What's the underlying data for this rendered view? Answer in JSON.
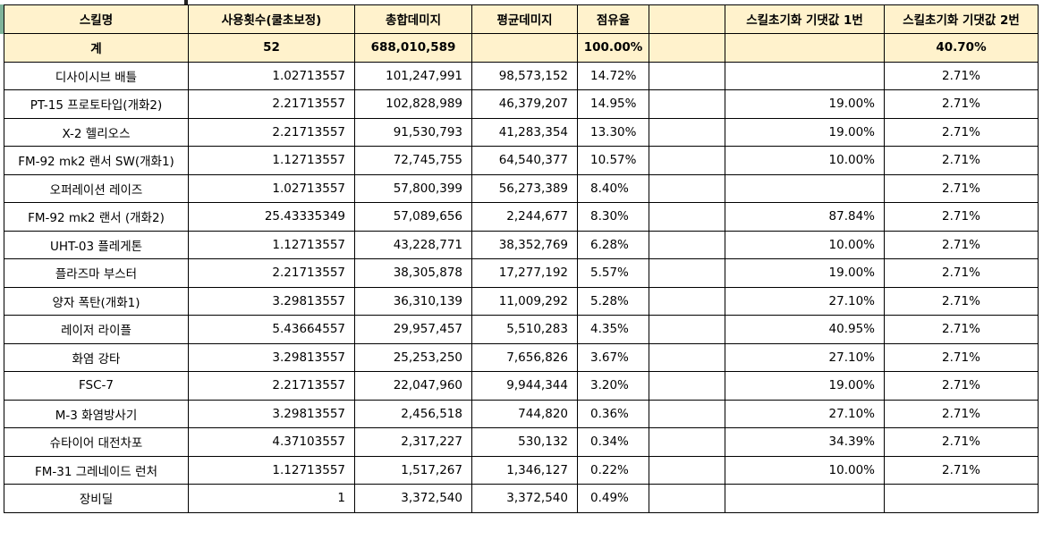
{
  "headers": {
    "skill_name": "스킬명",
    "usage": "사용횟수(쿨초보정)",
    "total_damage": "총합데미지",
    "avg_damage": "평균데미지",
    "share": "점유율",
    "blank": "",
    "reset1": "스킬초기화 기댓값 1번",
    "reset2": "스킬초기화 기댓값 2번"
  },
  "total": {
    "label": "계",
    "usage": "52",
    "total_damage": "688,010,589",
    "avg_damage": "",
    "share": "100.00%",
    "blank": "",
    "reset1": "",
    "reset2": "40.70%"
  },
  "rows": [
    {
      "name": "디사이시브 배틀",
      "usage": "1.02713557",
      "total": "101,247,991",
      "avg": "98,573,152",
      "share": "14.72%",
      "reset1": "",
      "reset2": "2.71%"
    },
    {
      "name": "PT-15 프로토타입(개화2)",
      "usage": "2.21713557",
      "total": "102,828,989",
      "avg": "46,379,207",
      "share": "14.95%",
      "reset1": "19.00%",
      "reset2": "2.71%"
    },
    {
      "name": "X-2 헬리오스",
      "usage": "2.21713557",
      "total": "91,530,793",
      "avg": "41,283,354",
      "share": "13.30%",
      "reset1": "19.00%",
      "reset2": "2.71%"
    },
    {
      "name": "FM-92 mk2 랜서 SW(개화1)",
      "usage": "1.12713557",
      "total": "72,745,755",
      "avg": "64,540,377",
      "share": "10.57%",
      "reset1": "10.00%",
      "reset2": "2.71%"
    },
    {
      "name": "오퍼레이션 레이즈",
      "usage": "1.02713557",
      "total": "57,800,399",
      "avg": "56,273,389",
      "share": "8.40%",
      "reset1": "",
      "reset2": "2.71%"
    },
    {
      "name": "FM-92 mk2 랜서 (개화2)",
      "usage": "25.43335349",
      "total": "57,089,656",
      "avg": "2,244,677",
      "share": "8.30%",
      "reset1": "87.84%",
      "reset2": "2.71%"
    },
    {
      "name": "UHT-03 플레게톤",
      "usage": "1.12713557",
      "total": "43,228,771",
      "avg": "38,352,769",
      "share": "6.28%",
      "reset1": "10.00%",
      "reset2": "2.71%"
    },
    {
      "name": "플라즈마 부스터",
      "usage": "2.21713557",
      "total": "38,305,878",
      "avg": "17,277,192",
      "share": "5.57%",
      "reset1": "19.00%",
      "reset2": "2.71%"
    },
    {
      "name": "양자 폭탄(개화1)",
      "usage": "3.29813557",
      "total": "36,310,139",
      "avg": "11,009,292",
      "share": "5.28%",
      "reset1": "27.10%",
      "reset2": "2.71%"
    },
    {
      "name": "레이저 라이플",
      "usage": "5.43664557",
      "total": "29,957,457",
      "avg": "5,510,283",
      "share": "4.35%",
      "reset1": "40.95%",
      "reset2": "2.71%"
    },
    {
      "name": "화염 강타",
      "usage": "3.29813557",
      "total": "25,253,250",
      "avg": "7,656,826",
      "share": "3.67%",
      "reset1": "27.10%",
      "reset2": "2.71%"
    },
    {
      "name": "FSC-7",
      "usage": "2.21713557",
      "total": "22,047,960",
      "avg": "9,944,344",
      "share": "3.20%",
      "reset1": "19.00%",
      "reset2": "2.71%"
    },
    {
      "name": "M-3 화염방사기",
      "usage": "3.29813557",
      "total": "2,456,518",
      "avg": "744,820",
      "share": "0.36%",
      "reset1": "27.10%",
      "reset2": "2.71%"
    },
    {
      "name": "슈타이어 대전차포",
      "usage": "4.37103557",
      "total": "2,317,227",
      "avg": "530,132",
      "share": "0.34%",
      "reset1": "34.39%",
      "reset2": "2.71%"
    },
    {
      "name": "FM-31 그레네이드 런처",
      "usage": "1.12713557",
      "total": "1,517,267",
      "avg": "1,346,127",
      "share": "0.22%",
      "reset1": "10.00%",
      "reset2": "2.71%"
    },
    {
      "name": "장비딜",
      "usage": "1",
      "total": "3,372,540",
      "avg": "3,372,540",
      "share": "0.49%",
      "reset1": "",
      "reset2": ""
    }
  ]
}
